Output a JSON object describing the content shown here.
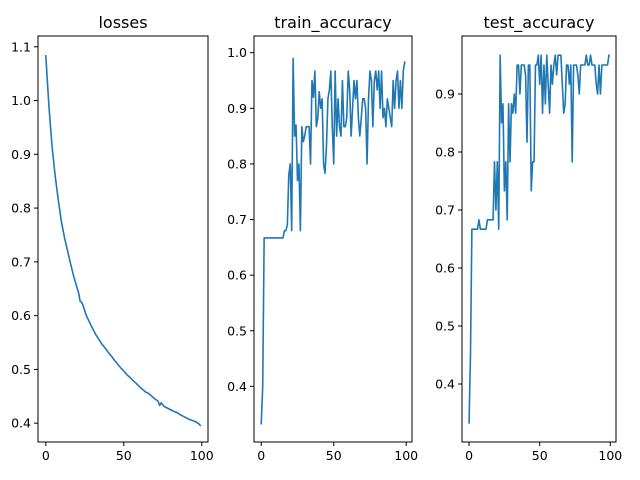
{
  "chart_data": [
    {
      "type": "line",
      "title": "losses",
      "xlabel": "",
      "ylabel": "",
      "xlim": [
        -5,
        104
      ],
      "ylim": [
        0.365,
        1.12
      ],
      "xticks": [
        0,
        50,
        100
      ],
      "yticks": [
        0.4,
        0.5,
        0.6,
        0.7,
        0.8,
        0.9,
        1.0,
        1.1
      ],
      "grid": false,
      "series": [
        {
          "x": [
            0,
            2,
            4,
            6,
            8,
            10,
            12,
            14,
            16,
            18,
            20,
            21,
            22,
            23,
            24,
            26,
            28,
            30,
            32,
            34,
            36,
            38,
            40,
            42,
            44,
            46,
            48,
            50,
            52,
            54,
            56,
            58,
            60,
            62,
            64,
            66,
            68,
            70,
            72,
            73,
            74,
            75,
            76,
            78,
            80,
            82,
            84,
            86,
            88,
            90,
            92,
            94,
            96,
            98,
            99
          ],
          "values": [
            1.083,
            0.99,
            0.915,
            0.86,
            0.815,
            0.775,
            0.745,
            0.72,
            0.695,
            0.672,
            0.652,
            0.643,
            0.627,
            0.625,
            0.618,
            0.6,
            0.588,
            0.576,
            0.565,
            0.556,
            0.547,
            0.54,
            0.532,
            0.525,
            0.517,
            0.51,
            0.503,
            0.497,
            0.49,
            0.485,
            0.479,
            0.474,
            0.468,
            0.463,
            0.458,
            0.455,
            0.45,
            0.445,
            0.441,
            0.433,
            0.438,
            0.434,
            0.431,
            0.428,
            0.425,
            0.422,
            0.42,
            0.416,
            0.413,
            0.41,
            0.407,
            0.405,
            0.403,
            0.399,
            0.396
          ]
        }
      ]
    },
    {
      "type": "line",
      "title": "train_accuracy",
      "xlabel": "",
      "ylabel": "",
      "xlim": [
        -5,
        104
      ],
      "ylim": [
        0.3,
        1.03
      ],
      "xticks": [
        0,
        50,
        100
      ],
      "yticks": [
        0.4,
        0.5,
        0.6,
        0.7,
        0.8,
        0.9,
        1.0
      ],
      "grid": false,
      "series": [
        {
          "x": [
            0,
            1,
            2,
            3,
            4,
            5,
            6,
            7,
            8,
            9,
            10,
            11,
            12,
            13,
            14,
            15,
            16,
            17,
            18,
            19,
            20,
            21,
            22,
            23,
            24,
            25,
            26,
            27,
            28,
            29,
            30,
            31,
            32,
            33,
            34,
            35,
            36,
            37,
            38,
            39,
            40,
            41,
            42,
            43,
            44,
            45,
            46,
            47,
            48,
            49,
            50,
            51,
            52,
            53,
            54,
            55,
            56,
            57,
            58,
            59,
            60,
            61,
            62,
            63,
            64,
            65,
            66,
            67,
            68,
            69,
            70,
            71,
            72,
            73,
            74,
            75,
            76,
            77,
            78,
            79,
            80,
            81,
            82,
            83,
            84,
            85,
            86,
            87,
            88,
            89,
            90,
            91,
            92,
            93,
            94,
            95,
            96,
            97,
            98,
            99
          ],
          "values": [
            0.333,
            0.4,
            0.667,
            0.667,
            0.667,
            0.667,
            0.667,
            0.667,
            0.667,
            0.667,
            0.667,
            0.667,
            0.667,
            0.667,
            0.667,
            0.667,
            0.68,
            0.68,
            0.69,
            0.78,
            0.8,
            0.68,
            0.99,
            0.85,
            0.87,
            0.77,
            0.8,
            0.68,
            0.867,
            0.84,
            0.85,
            0.867,
            0.867,
            0.867,
            0.8,
            0.95,
            0.92,
            0.967,
            0.867,
            0.883,
            0.93,
            0.9,
            0.917,
            0.8,
            0.783,
            0.833,
            0.917,
            0.933,
            0.967,
            0.867,
            0.8,
            0.967,
            0.85,
            0.917,
            0.867,
            0.85,
            0.95,
            0.867,
            0.867,
            0.883,
            0.967,
            0.933,
            0.85,
            0.9,
            0.95,
            0.917,
            0.95,
            0.883,
            0.85,
            0.883,
            0.917,
            0.917,
            0.9,
            0.8,
            0.917,
            0.967,
            0.95,
            0.867,
            0.95,
            0.967,
            0.933,
            0.967,
            0.9,
            0.967,
            0.883,
            0.9,
            0.867,
            0.917,
            0.9,
            0.883,
            0.867,
            0.95,
            0.9,
            0.95,
            0.967,
            0.9,
            0.95,
            0.9,
            0.967,
            0.983
          ]
        }
      ]
    },
    {
      "type": "line",
      "title": "test_accuracy",
      "xlabel": "",
      "ylabel": "",
      "xlim": [
        -5,
        104
      ],
      "ylim": [
        0.3,
        1.0
      ],
      "xticks": [
        0,
        50,
        100
      ],
      "yticks": [
        0.4,
        0.5,
        0.6,
        0.7,
        0.8,
        0.9
      ],
      "grid": false,
      "series": [
        {
          "x": [
            0,
            1,
            2,
            3,
            4,
            5,
            6,
            7,
            8,
            9,
            10,
            11,
            12,
            13,
            14,
            15,
            16,
            17,
            18,
            19,
            20,
            21,
            22,
            23,
            24,
            25,
            26,
            27,
            28,
            29,
            30,
            31,
            32,
            33,
            34,
            35,
            36,
            37,
            38,
            39,
            40,
            41,
            42,
            43,
            44,
            45,
            46,
            47,
            48,
            49,
            50,
            51,
            52,
            53,
            54,
            55,
            56,
            57,
            58,
            59,
            60,
            61,
            62,
            63,
            64,
            65,
            66,
            67,
            68,
            69,
            70,
            71,
            72,
            73,
            74,
            75,
            76,
            77,
            78,
            79,
            80,
            81,
            82,
            83,
            84,
            85,
            86,
            87,
            88,
            89,
            90,
            91,
            92,
            93,
            94,
            95,
            96,
            97,
            98,
            99
          ],
          "values": [
            0.333,
            0.45,
            0.667,
            0.667,
            0.667,
            0.667,
            0.667,
            0.683,
            0.667,
            0.667,
            0.667,
            0.667,
            0.667,
            0.683,
            0.683,
            0.683,
            0.683,
            0.683,
            0.783,
            0.7,
            0.783,
            0.667,
            0.967,
            0.85,
            0.883,
            0.733,
            0.783,
            0.683,
            0.883,
            0.783,
            0.883,
            0.867,
            0.9,
            0.867,
            0.95,
            0.95,
            0.9,
            0.95,
            0.95,
            0.95,
            0.933,
            0.817,
            0.95,
            0.95,
            0.733,
            0.783,
            0.783,
            0.95,
            0.95,
            0.967,
            0.917,
            0.967,
            0.867,
            0.95,
            0.883,
            0.967,
            0.917,
            0.867,
            0.95,
            0.917,
            0.95,
            0.967,
            0.933,
            0.967,
            0.967,
            0.967,
            0.917,
            0.867,
            0.883,
            0.95,
            0.95,
            0.917,
            0.95,
            0.783,
            0.95,
            0.95,
            0.95,
            0.933,
            0.9,
            0.95,
            0.95,
            0.95,
            0.95,
            0.967,
            0.95,
            0.95,
            0.967,
            0.95,
            0.95,
            0.95,
            0.917,
            0.9,
            0.95,
            0.9,
            0.95,
            0.95,
            0.95,
            0.95,
            0.95,
            0.967
          ]
        }
      ]
    }
  ],
  "colors": {
    "line": "#1f77b4",
    "axes": "#000000",
    "background": "#ffffff"
  }
}
